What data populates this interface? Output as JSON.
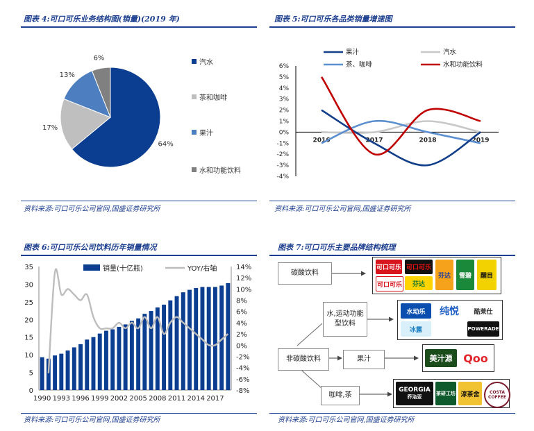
{
  "panels": {
    "p4": {
      "title": "图表 4:可口可乐业务结构图(销量)(2019 年)",
      "source": "资料来源:可口可乐公司官网,国盛证券研究所"
    },
    "p5": {
      "title": "图表 5:可口可乐各品类销量增速图",
      "source": "资料来源:可口可乐公司官网,国盛证券研究所"
    },
    "p6": {
      "title": "图表 6:可口可乐公司饮料历年销量情况",
      "source": "资料来源:可口可乐公司官网,国盛证券研究所"
    },
    "p7": {
      "title": "图表 7:可口可乐主要品牌结构梳理",
      "source": "资料来源:可口可乐公司官网,国盛证券研究所"
    }
  },
  "chart_data": [
    {
      "type": "pie",
      "labels": [
        "汽水",
        "茶和咖啡",
        "果汁",
        "水和功能饮料"
      ],
      "values": [
        64,
        17,
        13,
        6
      ],
      "value_labels": [
        "64%",
        "17%",
        "13%",
        "6%"
      ],
      "colors": [
        "#0b3d91",
        "#bfbfbf",
        "#4d7ebf",
        "#808080"
      ],
      "legend": "right"
    },
    {
      "type": "line",
      "x": [
        "2016",
        "2017",
        "2018",
        "2019"
      ],
      "series": [
        {
          "name": "果汁",
          "values": [
            2,
            -1,
            -3,
            0
          ],
          "color": "#123e8a"
        },
        {
          "name": "汽水",
          "values": [
            0,
            0,
            1,
            0
          ],
          "color": "#c8c8c8"
        },
        {
          "name": "茶、咖啡",
          "values": [
            -1,
            1,
            0,
            -1
          ],
          "color": "#5b8fd0"
        },
        {
          "name": "水和功能饮料",
          "values": [
            5,
            -2,
            2,
            1
          ],
          "color": "#c00000"
        }
      ],
      "ylim": [
        -4,
        6
      ],
      "yticks": [
        "6%",
        "5%",
        "4%",
        "3%",
        "2%",
        "1%",
        "0%",
        "-1%",
        "-2%",
        "-3%",
        "-4%"
      ],
      "legend": "top"
    },
    {
      "type": "bar",
      "x": [
        "1990",
        "1991",
        "1992",
        "1993",
        "1994",
        "1995",
        "1996",
        "1997",
        "1998",
        "1999",
        "2000",
        "2001",
        "2002",
        "2003",
        "2004",
        "2005",
        "2006",
        "2007",
        "2008",
        "2009",
        "2010",
        "2011",
        "2012",
        "2013",
        "2014",
        "2015",
        "2016",
        "2017",
        "2018",
        "2019"
      ],
      "xticks": [
        "1990",
        "1993",
        "1996",
        "1999",
        "2002",
        "2005",
        "2008",
        "2011",
        "2014",
        "2017"
      ],
      "series": [
        {
          "name": "销量(十亿瓶)",
          "type": "bar",
          "axis": "left",
          "color": "#0b3d91",
          "values": [
            9.3,
            8.9,
            9.8,
            10.3,
            11.2,
            12.1,
            13.0,
            14.3,
            15.0,
            16.0,
            16.8,
            17.2,
            17.9,
            18.6,
            19.6,
            20.3,
            21.6,
            22.4,
            23.4,
            24.2,
            25.4,
            26.6,
            27.7,
            28.4,
            28.9,
            29.2,
            29.2,
            29.2,
            29.6,
            30.3
          ]
        },
        {
          "name": "YOY/右轴",
          "type": "line",
          "axis": "right",
          "color": "#bdbdbd",
          "values": [
            null,
            -5,
            13,
            9,
            10,
            9,
            8,
            9,
            5,
            3,
            3,
            3,
            4,
            3,
            4,
            3,
            5,
            3,
            5,
            2,
            4,
            5,
            4,
            3,
            2,
            1,
            0,
            0,
            1,
            2
          ]
        }
      ],
      "ylim_left": [
        0,
        35
      ],
      "yticks_left": [
        "35",
        "30",
        "25",
        "20",
        "15",
        "10",
        "5",
        "0"
      ],
      "ylim_right": [
        -8,
        14
      ],
      "yticks_right": [
        "14%",
        "12%",
        "10%",
        "8%",
        "6%",
        "4%",
        "2%",
        "0%",
        "-2%",
        "-4%",
        "-6%",
        "-8%"
      ],
      "legend": "top"
    }
  ],
  "brand_tree": {
    "carbonated": "碳酸饮料",
    "non_carbonated": "非碳酸饮料",
    "water_func": "水,运动功能型饮料",
    "juice": "果汁",
    "coffee_tea": "咖啡,茶",
    "logos_carbonated": [
      "可口可乐",
      "可口可乐",
      "芬达",
      "雪碧",
      "醒目",
      "芬达",
      "可口可乐",
      "雪碧"
    ],
    "logos_water": [
      "水动乐",
      "纯悦",
      "酷莱仕",
      "POWERADE",
      "冰露"
    ],
    "logos_juice": [
      "美汁源",
      "Qoo"
    ],
    "logos_coffee": [
      "GEORGIA",
      "乔治亚",
      "茶研工坊",
      "淳茶舍",
      "COSTA COFFEE"
    ]
  }
}
